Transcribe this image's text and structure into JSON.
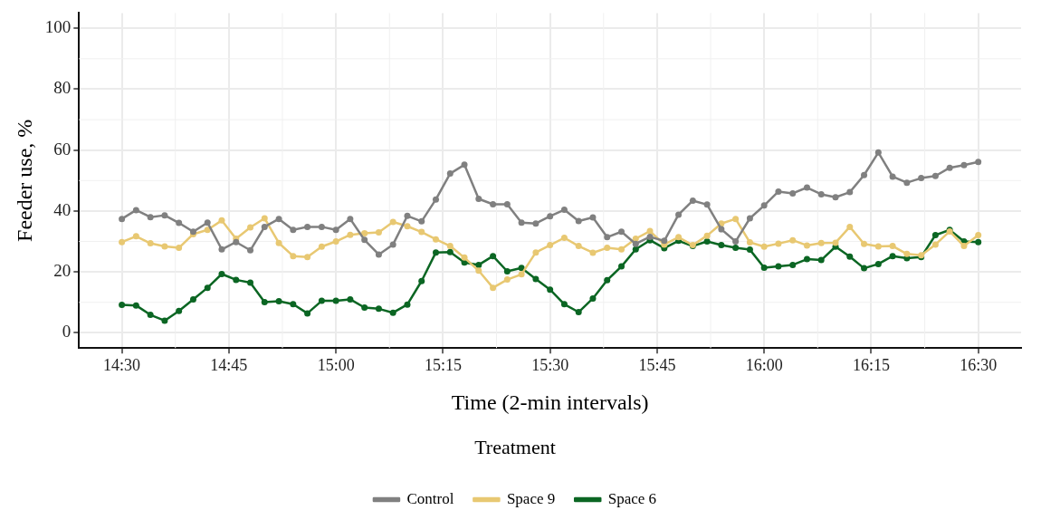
{
  "chart_data": {
    "type": "line",
    "xlabel": "Time (2-min intervals)",
    "ylabel": "Feeder use, %",
    "legend_title": "Treatment",
    "x": [
      14.5,
      14.5333,
      14.5667,
      14.6,
      14.6333,
      14.6667,
      14.7,
      14.7333,
      14.7667,
      14.8,
      14.8333,
      14.8667,
      14.9,
      14.9333,
      14.9667,
      15,
      15.0333,
      15.0667,
      15.1,
      15.1333,
      15.1667,
      15.2,
      15.2333,
      15.2667,
      15.3,
      15.3333,
      15.3667,
      15.4,
      15.4333,
      15.4667,
      15.5,
      15.5333,
      15.5667,
      15.6,
      15.6333,
      15.6667,
      15.7,
      15.7333,
      15.7667,
      15.8,
      15.8333,
      15.8667,
      15.9,
      15.9333,
      15.9667,
      16,
      16.0333,
      16.0667,
      16.1,
      16.1333,
      16.1667,
      16.2,
      16.2333,
      16.2667,
      16.3,
      16.3333,
      16.3667,
      16.4,
      16.4333,
      16.4667,
      16.5
    ],
    "series": [
      {
        "name": "Control",
        "color": "#808080",
        "values": [
          37.4,
          40.3,
          38.0,
          38.6,
          36.1,
          33.2,
          36.2,
          27.4,
          29.8,
          27.1,
          34.8,
          37.4,
          33.8,
          34.8,
          34.8,
          33.8,
          37.4,
          30.5,
          25.7,
          29.0,
          38.4,
          36.6,
          43.8,
          52.3,
          55.2,
          44.0,
          42.2,
          42.2,
          36.2,
          35.9,
          38.3,
          40.4,
          36.7,
          37.9,
          31.4,
          33.2,
          29.2,
          31.5,
          30.2,
          38.8,
          43.4,
          42.1,
          34.0,
          30.0,
          37.6,
          41.8,
          46.4,
          45.8,
          47.7,
          45.5,
          44.5,
          46.2,
          51.8,
          59.2,
          51.3,
          49.3,
          50.8,
          51.5,
          54.2,
          55.1,
          56.1
        ]
      },
      {
        "name": "Space 9",
        "color": "#e8c872",
        "values": [
          29.8,
          31.7,
          29.4,
          28.4,
          27.9,
          32.4,
          33.8,
          36.9,
          30.9,
          34.6,
          37.6,
          29.5,
          25.2,
          24.9,
          28.3,
          30.0,
          32.2,
          32.7,
          33.0,
          36.4,
          35.0,
          33.1,
          30.7,
          28.5,
          24.7,
          20.4,
          14.8,
          17.5,
          19.2,
          26.4,
          28.8,
          31.2,
          28.5,
          26.3,
          27.9,
          27.4,
          30.9,
          33.4,
          29.0,
          31.4,
          28.8,
          31.9,
          35.9,
          37.4,
          29.7,
          28.3,
          29.3,
          30.4,
          28.7,
          29.5,
          29.6,
          34.8,
          29.2,
          28.4,
          28.5,
          25.9,
          25.5,
          29.0,
          33.3,
          28.5,
          32.1
        ]
      },
      {
        "name": "Space 6",
        "color": "#0b6623",
        "values": [
          9.2,
          9.0,
          5.9,
          4.0,
          7.2,
          11.0,
          14.8,
          19.3,
          17.4,
          16.5,
          10.1,
          10.4,
          9.4,
          6.4,
          10.5,
          10.5,
          11.0,
          8.3,
          7.9,
          6.6,
          9.3,
          17.0,
          26.4,
          26.5,
          23.1,
          22.3,
          25.2,
          20.2,
          21.3,
          17.7,
          14.2,
          9.4,
          6.8,
          11.3,
          17.3,
          21.8,
          27.4,
          30.4,
          27.8,
          30.2,
          28.5,
          30.0,
          28.8,
          27.9,
          27.3,
          21.4,
          21.8,
          22.3,
          24.2,
          23.9,
          28.3,
          25.0,
          21.2,
          22.6,
          25.2,
          24.5,
          24.9,
          32.1,
          33.8,
          30.0,
          29.8
        ]
      }
    ],
    "xlim": [
      14.4,
      16.6
    ],
    "xticks": [
      {
        "value": 14.5,
        "label": "14:30"
      },
      {
        "value": 14.75,
        "label": "14:45"
      },
      {
        "value": 15,
        "label": "15:00"
      },
      {
        "value": 15.25,
        "label": "15:15"
      },
      {
        "value": 15.5,
        "label": "15:30"
      },
      {
        "value": 15.75,
        "label": "15:45"
      },
      {
        "value": 16,
        "label": "16:00"
      },
      {
        "value": 16.25,
        "label": "16:15"
      },
      {
        "value": 16.5,
        "label": "16:30"
      }
    ],
    "ylim": [
      -5,
      105
    ],
    "yticks": [
      0,
      20,
      40,
      60,
      80,
      100
    ],
    "grid": true,
    "legend": "bottom",
    "marker": "circle",
    "line_style": "solid"
  }
}
